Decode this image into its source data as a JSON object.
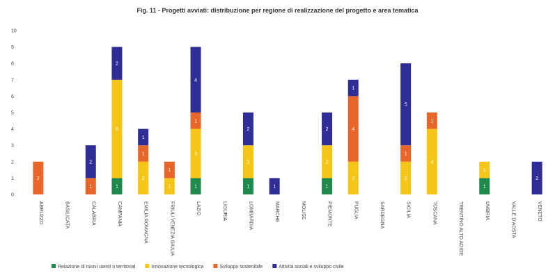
{
  "chart_data": {
    "type": "bar",
    "stacked": true,
    "title": "Fig. 11 - Progetti avviati: distribuzione per regione di realizzazione del progetto e area tematica",
    "ylim": [
      0,
      10
    ],
    "yticks": [
      0,
      1,
      2,
      3,
      4,
      5,
      6,
      7,
      8,
      9,
      10
    ],
    "categories": [
      "ABRUZZO",
      "BASILICATA",
      "CALABRIA",
      "CAMPANIA",
      "EMILIA ROMAGNA",
      "FRIULI VENEZIA GIULIA",
      "LAZIO",
      "LIGURIA",
      "LOMBARDIA",
      "MARCHE",
      "MOLISE",
      "PIEMONTE",
      "PUGLIA",
      "SARDEGNA",
      "SICILIA",
      "TOSCANA",
      "TRENTINO ALTO ADIGE",
      "UMBRIA",
      "VALLE D'AOSTA",
      "VENETO"
    ],
    "series": [
      {
        "name": "Relazione di nuovi utenti o territorial",
        "color": "#1f8a4c",
        "values": [
          0,
          0,
          0,
          1,
          0,
          0,
          1,
          0,
          1,
          0,
          0,
          1,
          0,
          0,
          0,
          0,
          0,
          1,
          0,
          0
        ]
      },
      {
        "name": "Innovazione tecnologica",
        "color": "#f5c518",
        "values": [
          0,
          0,
          0,
          6,
          2,
          1,
          3,
          0,
          2,
          0,
          0,
          2,
          2,
          0,
          2,
          4,
          0,
          1,
          0,
          0
        ]
      },
      {
        "name": "Sviluppo sostenibile",
        "color": "#e8662a",
        "values": [
          2,
          0,
          1,
          0,
          1,
          1,
          1,
          0,
          0,
          0,
          0,
          0,
          4,
          0,
          1,
          1,
          0,
          0,
          0,
          0
        ]
      },
      {
        "name": "Attività sociali e sviluppo civile",
        "color": "#2e2e96",
        "values": [
          0,
          0,
          2,
          2,
          1,
          0,
          4,
          0,
          2,
          1,
          0,
          2,
          1,
          0,
          5,
          0,
          0,
          0,
          0,
          2
        ]
      }
    ],
    "legend": "bottom",
    "grid": false
  }
}
